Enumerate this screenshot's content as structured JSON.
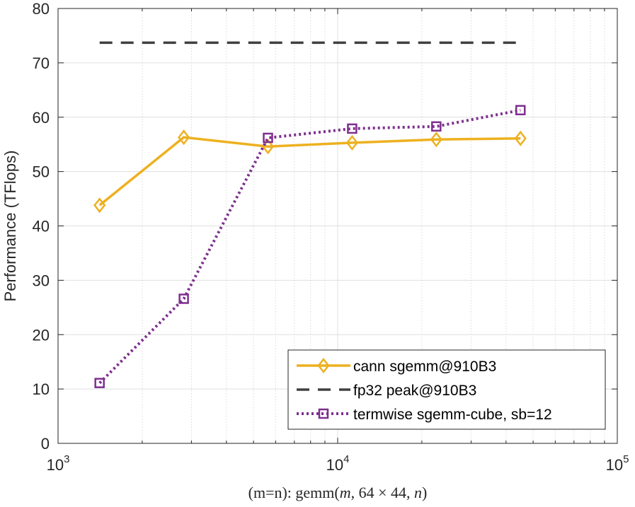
{
  "chart_data": {
    "type": "line",
    "x_scale": "log",
    "xlim": [
      1000,
      100000
    ],
    "ylim": [
      0,
      80
    ],
    "grid": true,
    "legend_position": "bottom-right",
    "ylabel": "Performance (TFlops)",
    "xlabel": {
      "prefix": "(m=n):  gemm(",
      "m": "m",
      "middle": ", 64 × 44, ",
      "n": "n",
      "suffix": ")"
    },
    "y_ticks": [
      {
        "value": 0,
        "label": "0"
      },
      {
        "value": 10,
        "label": "10"
      },
      {
        "value": 20,
        "label": "20"
      },
      {
        "value": 30,
        "label": "30"
      },
      {
        "value": 40,
        "label": "40"
      },
      {
        "value": 50,
        "label": "50"
      },
      {
        "value": 60,
        "label": "60"
      },
      {
        "value": 70,
        "label": "70"
      },
      {
        "value": 80,
        "label": "80"
      }
    ],
    "x_ticks": [
      {
        "value": 1000,
        "base": "10",
        "exp": "3"
      },
      {
        "value": 10000,
        "base": "10",
        "exp": "4"
      },
      {
        "value": 100000,
        "base": "10",
        "exp": "5"
      }
    ],
    "series": [
      {
        "name": "cann sgemm@910B3",
        "color": "#EDB120",
        "line_style": "solid",
        "marker": "diamond",
        "x": [
          1408,
          2816,
          5632,
          11264,
          22528,
          45056
        ],
        "y": [
          43.8,
          56.3,
          54.6,
          55.3,
          55.9,
          56.1
        ]
      },
      {
        "name": "fp32 peak@910B3",
        "color": "#404040",
        "line_style": "dashed",
        "marker": "none",
        "x": [
          1408,
          45056
        ],
        "y": [
          73.7,
          73.7
        ]
      },
      {
        "name": "termwise sgemm-cube, sb=12",
        "color": "#7E2F8E",
        "line_style": "dotted",
        "marker": "square",
        "x": [
          1408,
          2816,
          5632,
          11264,
          22528,
          45056
        ],
        "y": [
          11.1,
          26.6,
          56.2,
          57.9,
          58.3,
          61.3
        ]
      }
    ]
  }
}
